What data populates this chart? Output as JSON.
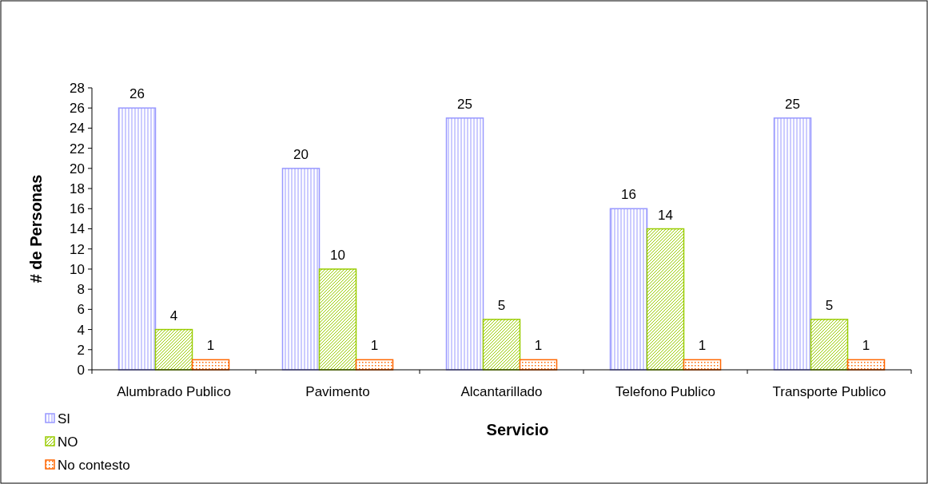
{
  "chart_data": {
    "type": "bar",
    "xlabel": "Servicio",
    "ylabel": "# de Personas",
    "categories": [
      "Alumbrado Publico",
      "Pavimento",
      "Alcantarillado",
      "Telefono Publico",
      "Transporte Publico"
    ],
    "series": [
      {
        "name": "SI",
        "color": "#9999ff",
        "values": [
          26,
          20,
          25,
          16,
          25
        ]
      },
      {
        "name": "NO",
        "color": "#99cc00",
        "values": [
          4,
          10,
          5,
          14,
          5
        ]
      },
      {
        "name": "No contesto",
        "color": "#ff6600",
        "values": [
          1,
          1,
          1,
          1,
          1
        ]
      }
    ],
    "ylim": [
      0,
      28
    ],
    "yticks": [
      0,
      2,
      4,
      6,
      8,
      10,
      12,
      14,
      16,
      18,
      20,
      22,
      24,
      26,
      28
    ],
    "data_labels": true,
    "grid": false,
    "legend": "bottom left"
  }
}
